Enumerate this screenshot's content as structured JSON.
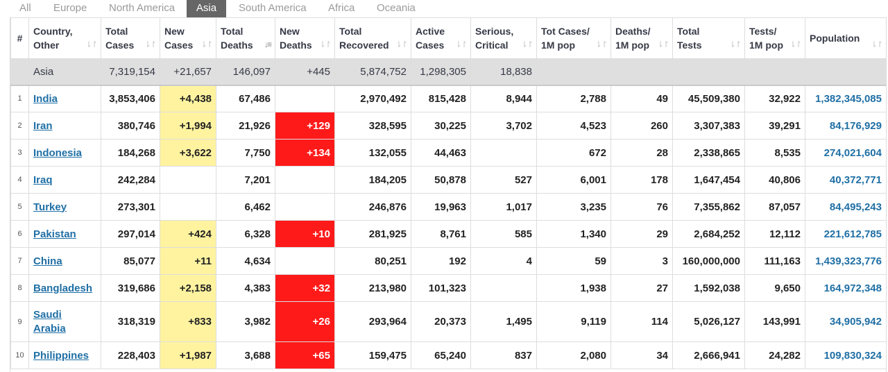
{
  "tabs": [
    {
      "label": "All",
      "active": false
    },
    {
      "label": "Europe",
      "active": false
    },
    {
      "label": "North America",
      "active": false
    },
    {
      "label": "Asia",
      "active": true
    },
    {
      "label": "South America",
      "active": false
    },
    {
      "label": "Africa",
      "active": false
    },
    {
      "label": "Oceania",
      "active": false
    }
  ],
  "columns": [
    {
      "line1": "#",
      "line2": ""
    },
    {
      "line1": "Country,",
      "line2": "Other"
    },
    {
      "line1": "Total",
      "line2": "Cases"
    },
    {
      "line1": "New",
      "line2": "Cases"
    },
    {
      "line1": "Total",
      "line2": "Deaths"
    },
    {
      "line1": "New",
      "line2": "Deaths"
    },
    {
      "line1": "Total",
      "line2": "Recovered"
    },
    {
      "line1": "Active",
      "line2": "Cases"
    },
    {
      "line1": "Serious,",
      "line2": "Critical"
    },
    {
      "line1": "Tot Cases/",
      "line2": "1M pop"
    },
    {
      "line1": "Deaths/",
      "line2": "1M pop"
    },
    {
      "line1": "Total",
      "line2": "Tests"
    },
    {
      "line1": "Tests/",
      "line2": "1M pop"
    },
    {
      "line1": "Population",
      "line2": ""
    }
  ],
  "sort_icons": {
    "default": "⇂↾",
    "active": "↓≡"
  },
  "continent_row": {
    "name": "Asia",
    "total_cases": "7,319,154",
    "new_cases": "+21,657",
    "total_deaths": "146,097",
    "new_deaths": "+445",
    "total_recovered": "5,874,752",
    "active_cases": "1,298,305",
    "serious": "18,838"
  },
  "rows": [
    {
      "rank": "1",
      "country": "India",
      "total_cases": "3,853,406",
      "new_cases": "+4,438",
      "total_deaths": "67,486",
      "new_deaths": "",
      "total_recovered": "2,970,492",
      "active_cases": "815,428",
      "serious": "8,944",
      "cases_per_1m": "2,788",
      "deaths_per_1m": "49",
      "total_tests": "45,509,380",
      "tests_per_1m": "32,922",
      "population": "1,382,345,085"
    },
    {
      "rank": "2",
      "country": "Iran",
      "total_cases": "380,746",
      "new_cases": "+1,994",
      "total_deaths": "21,926",
      "new_deaths": "+129",
      "total_recovered": "328,595",
      "active_cases": "30,225",
      "serious": "3,702",
      "cases_per_1m": "4,523",
      "deaths_per_1m": "260",
      "total_tests": "3,307,383",
      "tests_per_1m": "39,291",
      "population": "84,176,929"
    },
    {
      "rank": "3",
      "country": "Indonesia",
      "total_cases": "184,268",
      "new_cases": "+3,622",
      "total_deaths": "7,750",
      "new_deaths": "+134",
      "total_recovered": "132,055",
      "active_cases": "44,463",
      "serious": "",
      "cases_per_1m": "672",
      "deaths_per_1m": "28",
      "total_tests": "2,338,865",
      "tests_per_1m": "8,535",
      "population": "274,021,604"
    },
    {
      "rank": "4",
      "country": "Iraq",
      "total_cases": "242,284",
      "new_cases": "",
      "total_deaths": "7,201",
      "new_deaths": "",
      "total_recovered": "184,205",
      "active_cases": "50,878",
      "serious": "527",
      "cases_per_1m": "6,001",
      "deaths_per_1m": "178",
      "total_tests": "1,647,454",
      "tests_per_1m": "40,806",
      "population": "40,372,771"
    },
    {
      "rank": "5",
      "country": "Turkey",
      "total_cases": "273,301",
      "new_cases": "",
      "total_deaths": "6,462",
      "new_deaths": "",
      "total_recovered": "246,876",
      "active_cases": "19,963",
      "serious": "1,017",
      "cases_per_1m": "3,235",
      "deaths_per_1m": "76",
      "total_tests": "7,355,862",
      "tests_per_1m": "87,057",
      "population": "84,495,243"
    },
    {
      "rank": "6",
      "country": "Pakistan",
      "total_cases": "297,014",
      "new_cases": "+424",
      "total_deaths": "6,328",
      "new_deaths": "+10",
      "total_recovered": "281,925",
      "active_cases": "8,761",
      "serious": "585",
      "cases_per_1m": "1,340",
      "deaths_per_1m": "29",
      "total_tests": "2,684,252",
      "tests_per_1m": "12,112",
      "population": "221,612,785"
    },
    {
      "rank": "7",
      "country": "China",
      "total_cases": "85,077",
      "new_cases": "+11",
      "total_deaths": "4,634",
      "new_deaths": "",
      "total_recovered": "80,251",
      "active_cases": "192",
      "serious": "4",
      "cases_per_1m": "59",
      "deaths_per_1m": "3",
      "total_tests": "160,000,000",
      "tests_per_1m": "111,163",
      "population": "1,439,323,776"
    },
    {
      "rank": "8",
      "country": "Bangladesh",
      "total_cases": "319,686",
      "new_cases": "+2,158",
      "total_deaths": "4,383",
      "new_deaths": "+32",
      "total_recovered": "213,980",
      "active_cases": "101,323",
      "serious": "",
      "cases_per_1m": "1,938",
      "deaths_per_1m": "27",
      "total_tests": "1,592,038",
      "tests_per_1m": "9,650",
      "population": "164,972,348"
    },
    {
      "rank": "9",
      "country": "Saudi Arabia",
      "total_cases": "318,319",
      "new_cases": "+833",
      "total_deaths": "3,982",
      "new_deaths": "+26",
      "total_recovered": "293,964",
      "active_cases": "20,373",
      "serious": "1,495",
      "cases_per_1m": "9,119",
      "deaths_per_1m": "114",
      "total_tests": "5,026,127",
      "tests_per_1m": "143,991",
      "population": "34,905,942"
    },
    {
      "rank": "10",
      "country": "Philippines",
      "total_cases": "228,403",
      "new_cases": "+1,987",
      "total_deaths": "3,688",
      "new_deaths": "+65",
      "total_recovered": "159,475",
      "active_cases": "65,240",
      "serious": "837",
      "cases_per_1m": "2,080",
      "deaths_per_1m": "34",
      "total_tests": "2,666,941",
      "tests_per_1m": "24,282",
      "population": "109,830,324"
    }
  ]
}
